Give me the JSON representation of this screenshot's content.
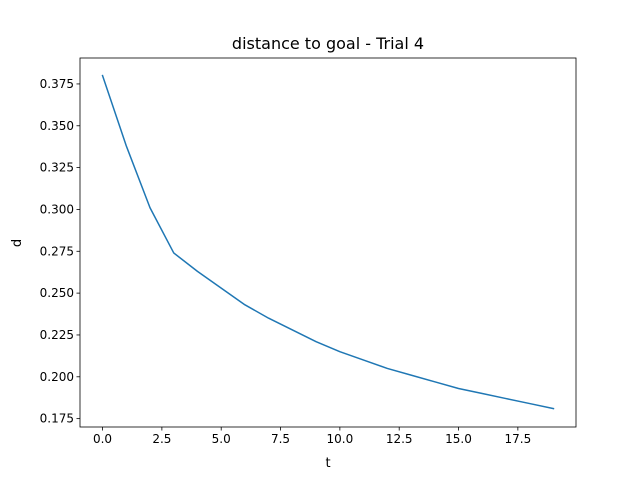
{
  "chart_data": {
    "type": "line",
    "title": "distance to goal - Trial 4",
    "xlabel": "t",
    "ylabel": "d",
    "xlim": [
      -0.95,
      19.95
    ],
    "ylim": [
      0.17,
      0.3905
    ],
    "xticks": [
      0.0,
      2.5,
      5.0,
      7.5,
      10.0,
      12.5,
      15.0,
      17.5
    ],
    "xtick_labels": [
      "0.0",
      "2.5",
      "5.0",
      "7.5",
      "10.0",
      "12.5",
      "15.0",
      "17.5"
    ],
    "yticks": [
      0.175,
      0.2,
      0.225,
      0.25,
      0.275,
      0.3,
      0.325,
      0.35,
      0.375
    ],
    "ytick_labels": [
      "0.175",
      "0.200",
      "0.225",
      "0.250",
      "0.275",
      "0.300",
      "0.325",
      "0.350",
      "0.375"
    ],
    "grid": false,
    "series": [
      {
        "color": "#1f77b4",
        "x": [
          0,
          1,
          2,
          3,
          4,
          5,
          6,
          7,
          8,
          9,
          10,
          11,
          12,
          13,
          14,
          15,
          16,
          17,
          18,
          19
        ],
        "values": [
          0.38,
          0.338,
          0.301,
          0.274,
          0.263,
          0.253,
          0.243,
          0.235,
          0.228,
          0.221,
          0.215,
          0.21,
          0.205,
          0.201,
          0.197,
          0.193,
          0.19,
          0.187,
          0.184,
          0.181
        ]
      }
    ]
  }
}
